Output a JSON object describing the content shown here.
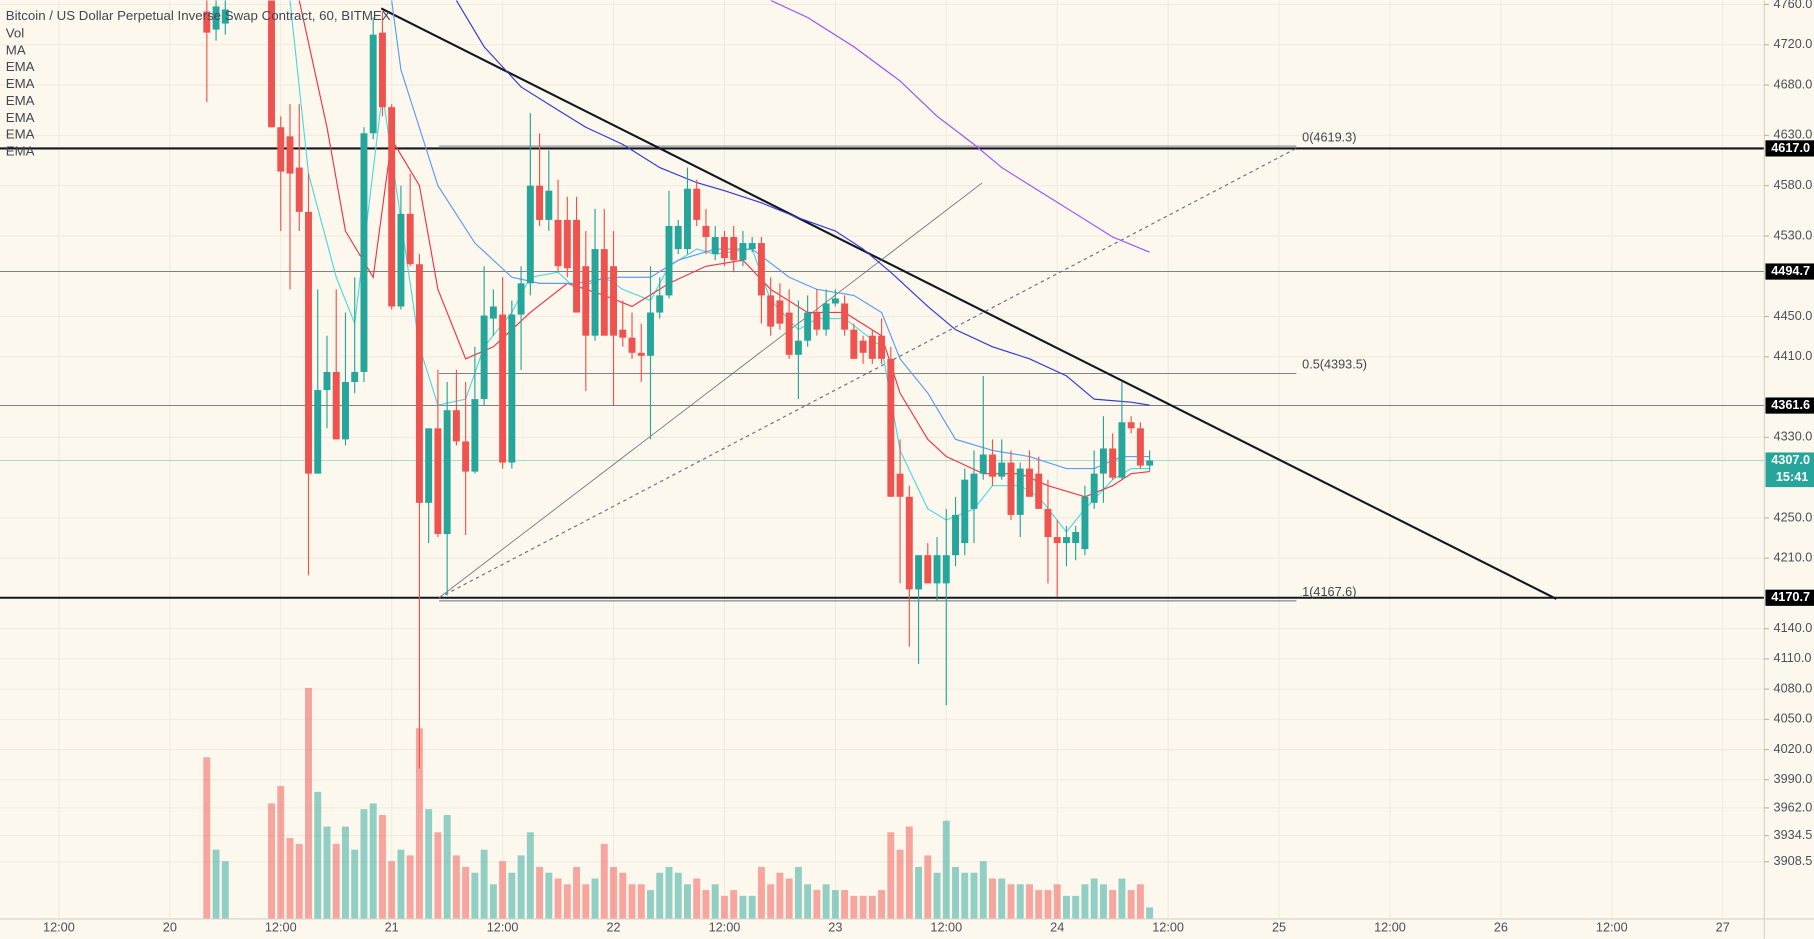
{
  "chart_data": {
    "type": "candlestick",
    "title": "Bitcoin / US Dollar Perpetual Inverse Swap Contract, 60, BITMEX",
    "indicators": [
      "Vol",
      "MA",
      "EMA",
      "EMA",
      "EMA",
      "EMA",
      "EMA",
      "EMA"
    ],
    "up_color": "#26a69a",
    "down_color": "#ef5350",
    "x": [
      28,
      29,
      30,
      35,
      36,
      37,
      38,
      39,
      40,
      41,
      42,
      43,
      44,
      45,
      46,
      47,
      48,
      49,
      50,
      51,
      52,
      53,
      54,
      55,
      56,
      57,
      58,
      59,
      60,
      61,
      62,
      63,
      64,
      65,
      66,
      67,
      68,
      69,
      70,
      71,
      72,
      73,
      74,
      75,
      76,
      77,
      78,
      79,
      80,
      81,
      82,
      83,
      84,
      85,
      86,
      87,
      88,
      89,
      90,
      91,
      92,
      93,
      94,
      95,
      96,
      97,
      98,
      99,
      100,
      101,
      102,
      103,
      104,
      105,
      106,
      107,
      108,
      109,
      110,
      111,
      112,
      113,
      114,
      115,
      116,
      117,
      118,
      119,
      120,
      121,
      122,
      123,
      124,
      125,
      126,
      127,
      128,
      129,
      130
    ],
    "open": [
      4753,
      4735,
      4741,
      4764,
      4638,
      4629,
      4598,
      4554,
      4294,
      4377,
      4395,
      4328,
      4385,
      4395,
      4632,
      4732,
      4658,
      4460,
      4552,
      4502,
      4265,
      4339,
      4234,
      4357,
      4326,
      4296,
      4368,
      4448,
      4452,
      4305,
      4452,
      4483,
      4580,
      4546,
      4546,
      4546,
      4546,
      4500,
      4431,
      4517,
      4500,
      4437,
      4429,
      4414,
      4411,
      4454,
      4471,
      4517,
      4517,
      4577,
      4540,
      4512,
      4529,
      4529,
      4506,
      4517,
      4523,
      4471,
      4466,
      4454,
      4412,
      4426,
      4454,
      4437,
      4463,
      4463,
      4437,
      4426,
      4431,
      4431,
      4408,
      4294,
      4271,
      4179,
      4213,
      4185,
      4185,
      4213,
      4225,
      4259,
      4294,
      4313,
      4291,
      4305,
      4253,
      4299,
      4294,
      4259,
      4231,
      4225,
      4225,
      4219,
      4265,
      4294,
      4319,
      4290,
      4345,
      4339,
      4302
    ],
    "high": [
      4764,
      4764,
      4764,
      4764,
      4649,
      4661,
      4661,
      4592,
      4477,
      4431,
      4477,
      4454,
      4489,
      4638,
      4747,
      4753,
      4661,
      4580,
      4592,
      4512,
      4339,
      4397,
      4385,
      4397,
      4385,
      4420,
      4500,
      4477,
      4489,
      4466,
      4500,
      4652,
      4632,
      4615,
      4586,
      4569,
      4569,
      4535,
      4557,
      4557,
      4535,
      4466,
      4454,
      4443,
      4500,
      4489,
      4575,
      4546,
      4598,
      4586,
      4557,
      4540,
      4535,
      4540,
      4535,
      4529,
      4529,
      4489,
      4483,
      4477,
      4466,
      4471,
      4477,
      4477,
      4477,
      4471,
      4443,
      4431,
      4437,
      4448,
      4420,
      4328,
      4282,
      4213,
      4225,
      4231,
      4259,
      4271,
      4299,
      4317,
      4391,
      4328,
      4328,
      4317,
      4305,
      4317,
      4311,
      4288,
      4248,
      4242,
      4242,
      4282,
      4317,
      4351,
      4334,
      4385,
      4351,
      4345,
      4317
    ],
    "low": [
      4663,
      4724,
      4730,
      4638,
      4535,
      4477,
      4535,
      4193,
      4294,
      4339,
      4328,
      4322,
      4374,
      4385,
      4626,
      4649,
      4457,
      4457,
      4500,
      4001,
      4225,
      4231,
      4173,
      4322,
      4233,
      4294,
      4362,
      4431,
      4299,
      4299,
      4397,
      4471,
      4540,
      4535,
      4494,
      4489,
      4454,
      4376,
      4426,
      4431,
      4362,
      4420,
      4408,
      4385,
      4328,
      4448,
      4468,
      4512,
      4512,
      4540,
      4512,
      4506,
      4500,
      4494,
      4500,
      4514,
      4443,
      4431,
      4437,
      4408,
      4368,
      4420,
      4431,
      4431,
      4460,
      4431,
      4408,
      4403,
      4403,
      4403,
      4271,
      4185,
      4122,
      4105,
      4185,
      4167,
      4064,
      4202,
      4213,
      4225,
      4288,
      4282,
      4288,
      4248,
      4231,
      4271,
      4259,
      4185,
      4172,
      4202,
      4208,
      4213,
      4259,
      4265,
      4288,
      4288,
      4334,
      4299,
      4296
    ],
    "close": [
      4732,
      4758,
      4755,
      4638,
      4594,
      4592,
      4554,
      4294,
      4377,
      4395,
      4328,
      4385,
      4395,
      4632,
      4730,
      4658,
      4460,
      4552,
      4502,
      4265,
      4339,
      4234,
      4357,
      4326,
      4296,
      4368,
      4451,
      4460,
      4305,
      4452,
      4483,
      4580,
      4546,
      4575,
      4500,
      4498,
      4454,
      4431,
      4517,
      4431,
      4431,
      4429,
      4414,
      4411,
      4454,
      4471,
      4540,
      4540,
      4577,
      4546,
      4529,
      4529,
      4508,
      4506,
      4523,
      4523,
      4471,
      4440,
      4443,
      4412,
      4426,
      4454,
      4437,
      4463,
      4468,
      4437,
      4408,
      4414,
      4408,
      4408,
      4271,
      4271,
      4179,
      4213,
      4185,
      4213,
      4213,
      4253,
      4288,
      4294,
      4313,
      4291,
      4305,
      4253,
      4299,
      4271,
      4259,
      4231,
      4225,
      4231,
      4236,
      4271,
      4294,
      4319,
      4290,
      4345,
      4339,
      4302,
      4307
    ],
    "volume": [
      140,
      60,
      50,
      100,
      115,
      70,
      65,
      200,
      110,
      80,
      65,
      80,
      60,
      95,
      100,
      90,
      50,
      60,
      55,
      165,
      95,
      75,
      90,
      55,
      45,
      40,
      60,
      30,
      50,
      40,
      55,
      75,
      45,
      40,
      35,
      30,
      45,
      30,
      35,
      65,
      45,
      40,
      30,
      30,
      25,
      40,
      45,
      40,
      30,
      35,
      25,
      30,
      20,
      25,
      20,
      20,
      45,
      30,
      40,
      35,
      45,
      30,
      25,
      30,
      25,
      25,
      20,
      20,
      20,
      25,
      75,
      60,
      80,
      45,
      55,
      40,
      85,
      45,
      40,
      40,
      50,
      35,
      35,
      30,
      30,
      30,
      25,
      25,
      30,
      20,
      20,
      30,
      35,
      30,
      25,
      35,
      25,
      30,
      10
    ],
    "ema": [
      {
        "color": "#4dd9dc",
        "x": [
          37,
          39,
          42,
          44,
          47,
          51,
          53,
          56,
          58,
          61,
          63,
          66,
          68,
          71,
          73,
          76,
          78,
          81,
          83,
          87,
          89,
          92,
          94,
          97,
          101,
          103,
          106,
          108,
          111,
          113,
          116,
          118,
          121,
          123,
          126,
          128,
          130
        ],
        "values": [
          4764,
          4592,
          4489,
          4443,
          4672,
          4420,
          4362,
          4368,
          4420,
          4454,
          4489,
          4494,
          4477,
          4489,
          4477,
          4466,
          4500,
          4517,
          4512,
          4517,
          4466,
          4437,
          4448,
          4448,
          4420,
          4317,
          4259,
          4248,
          4259,
          4282,
          4282,
          4271,
          4236,
          4259,
          4288,
          4299,
          4299
        ]
      },
      {
        "color": "#f23645",
        "x": [
          38,
          41,
          43,
          46,
          48,
          51,
          53,
          56,
          59,
          63,
          67,
          71,
          74,
          78,
          82,
          86,
          89,
          93,
          97,
          101,
          103,
          106,
          108,
          112,
          116,
          119,
          123,
          126,
          128,
          130
        ],
        "values": [
          4764,
          4638,
          4535,
          4489,
          4626,
          4580,
          4477,
          4408,
          4420,
          4454,
          4483,
          4471,
          4460,
          4483,
          4500,
          4506,
          4477,
          4454,
          4454,
          4431,
          4374,
          4328,
          4311,
          4294,
          4294,
          4282,
          4271,
          4282,
          4294,
          4296
        ]
      },
      {
        "color": "#5b9cf6",
        "x": [
          48,
          49,
          53,
          57,
          61,
          64,
          68,
          72,
          76,
          79,
          83,
          87,
          91,
          94,
          98,
          101,
          103,
          106,
          109,
          113,
          117,
          121,
          124,
          127,
          130
        ],
        "values": [
          4764,
          4695,
          4580,
          4523,
          4489,
          4483,
          4483,
          4489,
          4489,
          4506,
          4517,
          4517,
          4489,
          4477,
          4471,
          4454,
          4408,
          4374,
          4328,
          4317,
          4311,
          4299,
          4299,
          4311,
          4311
        ]
      },
      {
        "color": "#2f3bd6",
        "x": [
          55,
          58,
          62,
          66,
          69,
          73,
          77,
          81,
          84,
          88,
          92,
          96,
          99,
          102,
          106,
          109,
          113,
          117,
          121,
          124,
          128,
          130
        ],
        "values": [
          4764,
          4718,
          4678,
          4655,
          4638,
          4621,
          4598,
          4583,
          4575,
          4563,
          4548,
          4535,
          4517,
          4494,
          4460,
          4437,
          4420,
          4408,
          4391,
          4368,
          4365,
          4362
        ]
      },
      {
        "color": "#9c4dff",
        "x": [
          89,
          93,
          98,
          103,
          107,
          111,
          114,
          118,
          122,
          126,
          130
        ],
        "values": [
          4764,
          4747,
          4718,
          4684,
          4649,
          4621,
          4598,
          4575,
          4552,
          4529,
          4514
        ]
      }
    ],
    "levels": [
      {
        "value": 4617.0,
        "label": "4617.0",
        "color": "#131722"
      },
      {
        "value": 4494.7,
        "label": "4494.7",
        "color": "#6b6f7a"
      },
      {
        "value": 4361.6,
        "label": "4361.6",
        "color": "#6b6f7a"
      },
      {
        "value": 4170.7,
        "label": "4170.7",
        "color": "#131722"
      }
    ],
    "fib": [
      {
        "value": 4619.3,
        "label": "0(4619.3)"
      },
      {
        "value": 4393.5,
        "label": "0.5(4393.5)"
      },
      {
        "value": 4167.6,
        "label": "1(4167.6)"
      }
    ],
    "last_price": {
      "value": 4307.0,
      "label": "4307.0",
      "color": "#26a69a"
    },
    "countdown": "15:41",
    "xlim": [
      5.625,
      196.5
    ],
    "ylim": [
      3854,
      4764
    ],
    "grid": true,
    "xticks": [
      {
        "value": 12,
        "label": "12:00"
      },
      {
        "value": 24,
        "label": "20"
      },
      {
        "value": 36,
        "label": "12:00"
      },
      {
        "value": 48,
        "label": "21"
      },
      {
        "value": 60,
        "label": "12:00"
      },
      {
        "value": 72,
        "label": "22"
      },
      {
        "value": 84,
        "label": "12:00"
      },
      {
        "value": 96,
        "label": "23"
      },
      {
        "value": 108,
        "label": "12:00"
      },
      {
        "value": 120,
        "label": "24"
      },
      {
        "value": 132,
        "label": "12:00"
      },
      {
        "value": 144,
        "label": "25"
      },
      {
        "value": 156,
        "label": "12:00"
      },
      {
        "value": 168,
        "label": "26"
      },
      {
        "value": 180,
        "label": "12:00"
      },
      {
        "value": 192,
        "label": "27"
      }
    ],
    "yticks": [
      {
        "value": 4760,
        "label": "4760.0"
      },
      {
        "value": 4720,
        "label": "4720.0"
      },
      {
        "value": 4680,
        "label": "4680.0"
      },
      {
        "value": 4630,
        "label": "4630.0"
      },
      {
        "value": 4580,
        "label": "4580.0"
      },
      {
        "value": 4530,
        "label": "4530.0"
      },
      {
        "value": 4450,
        "label": "4450.0"
      },
      {
        "value": 4410,
        "label": "4410.0"
      },
      {
        "value": 4330,
        "label": "4330.0"
      },
      {
        "value": 4250,
        "label": "4250.0"
      },
      {
        "value": 4210,
        "label": "4210.0"
      },
      {
        "value": 4140,
        "label": "4140.0"
      },
      {
        "value": 4110,
        "label": "4110.0"
      },
      {
        "value": 4080,
        "label": "4080.0"
      },
      {
        "value": 4050,
        "label": "4050.0"
      },
      {
        "value": 4020,
        "label": "4020.0"
      },
      {
        "value": 3990,
        "label": "3990.0"
      },
      {
        "value": 3962,
        "label": "3962.0"
      },
      {
        "value": 3934.5,
        "label": "3934.5"
      },
      {
        "value": 3908.5,
        "label": "3908.5"
      }
    ]
  }
}
